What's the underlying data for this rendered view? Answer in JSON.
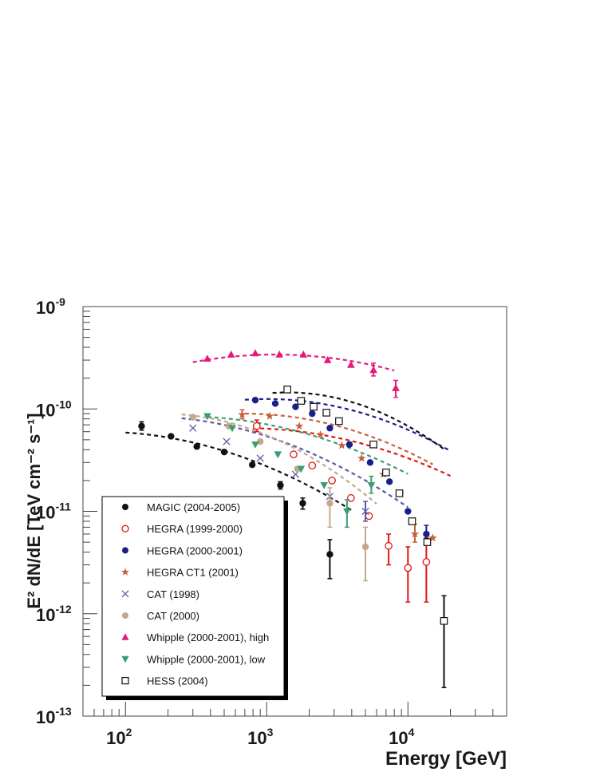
{
  "chart_data": {
    "type": "scatter",
    "x_scale": "log",
    "y_scale": "log",
    "xlim": [
      50,
      50000
    ],
    "ylim": [
      1e-13,
      1e-09
    ],
    "grid": false,
    "legend_position": "bottom-left",
    "xlabel": "Energy [GeV]",
    "ylabel": "E² dN/dE [TeV cm⁻² s⁻¹]",
    "x_ticks": [
      {
        "value": 100,
        "base": "10",
        "exp": "2"
      },
      {
        "value": 1000,
        "base": "10",
        "exp": "3"
      },
      {
        "value": 10000,
        "base": "10",
        "exp": "4"
      }
    ],
    "y_ticks": [
      {
        "value": 1e-09,
        "base": "10",
        "exp": "-9"
      },
      {
        "value": 1e-10,
        "base": "10",
        "exp": "-10"
      },
      {
        "value": 1e-11,
        "base": "10",
        "exp": "-11"
      },
      {
        "value": 1e-12,
        "base": "10",
        "exp": "-12"
      },
      {
        "value": 1e-13,
        "base": "10",
        "exp": "-13"
      }
    ],
    "series": [
      {
        "name": "MAGIC (2004-2005)",
        "color": "#111111",
        "marker": "filled-circle",
        "fit": {
          "x_range": [
            100,
            4000
          ],
          "peak_energy": 65,
          "norm": 6e-11,
          "curvature": 0.24
        },
        "points": [
          {
            "x": 130,
            "y": 6.8e-11,
            "lo": 6.2e-11,
            "hi": 7.5e-11
          },
          {
            "x": 210,
            "y": 5.4e-11
          },
          {
            "x": 320,
            "y": 4.3e-11
          },
          {
            "x": 500,
            "y": 3.8e-11
          },
          {
            "x": 790,
            "y": 2.85e-11
          },
          {
            "x": 1250,
            "y": 1.8e-11,
            "lo": 1.65e-11,
            "hi": 1.95e-11
          },
          {
            "x": 1800,
            "y": 1.2e-11,
            "lo": 1.05e-11,
            "hi": 1.35e-11
          },
          {
            "x": 2800,
            "y": 3.8e-12,
            "lo": 2.2e-12,
            "hi": 5.3e-12
          }
        ]
      },
      {
        "name": "HEGRA (1999-2000)",
        "color": "#e01818",
        "marker": "open-circle",
        "fit": {
          "x_range": [
            800,
            20000
          ],
          "peak_energy": 700,
          "norm": 6.5e-11,
          "curvature": 0.22
        },
        "points": [
          {
            "x": 850,
            "y": 6.8e-11,
            "lo": 6e-11,
            "hi": 7.8e-11
          },
          {
            "x": 1550,
            "y": 3.6e-11
          },
          {
            "x": 2100,
            "y": 2.8e-11
          },
          {
            "x": 2900,
            "y": 2e-11
          },
          {
            "x": 3950,
            "y": 1.35e-11
          },
          {
            "x": 5300,
            "y": 9e-12
          },
          {
            "x": 7300,
            "y": 4.6e-12,
            "lo": 3e-12,
            "hi": 6e-12
          },
          {
            "x": 10000,
            "y": 2.8e-12,
            "lo": 1.3e-12,
            "hi": 4.5e-12
          },
          {
            "x": 13500,
            "y": 3.2e-12,
            "lo": 1.3e-12,
            "hi": 5.5e-12
          }
        ]
      },
      {
        "name": "HEGRA (2000-2001)",
        "color": "#1a1f8c",
        "marker": "filled-circle",
        "fit": {
          "x_range": [
            700,
            20000
          ],
          "peak_energy": 1000,
          "norm": 1.25e-10,
          "curvature": 0.3
        },
        "points": [
          {
            "x": 830,
            "y": 1.22e-10
          },
          {
            "x": 1150,
            "y": 1.13e-10
          },
          {
            "x": 1600,
            "y": 1.05e-10
          },
          {
            "x": 2100,
            "y": 9e-11
          },
          {
            "x": 2800,
            "y": 6.5e-11
          },
          {
            "x": 3850,
            "y": 4.5e-11
          },
          {
            "x": 5400,
            "y": 3e-11
          },
          {
            "x": 7400,
            "y": 1.95e-11
          },
          {
            "x": 10000,
            "y": 1e-11
          },
          {
            "x": 13500,
            "y": 6e-12,
            "lo": 4.8e-12,
            "hi": 7.3e-12
          }
        ]
      },
      {
        "name": "HEGRA CT1 (2001)",
        "color": "#c8623e",
        "marker": "star",
        "fit": {
          "x_range": [
            700,
            15000
          ],
          "peak_energy": 700,
          "norm": 9e-11,
          "curvature": 0.28
        },
        "points": [
          {
            "x": 670,
            "y": 8.8e-11,
            "lo": 8e-11,
            "hi": 9.8e-11
          },
          {
            "x": 1050,
            "y": 8.5e-11
          },
          {
            "x": 1700,
            "y": 6.8e-11
          },
          {
            "x": 2400,
            "y": 5.6e-11
          },
          {
            "x": 3400,
            "y": 4.4e-11
          },
          {
            "x": 4700,
            "y": 3.3e-11
          },
          {
            "x": 6700,
            "y": 2.3e-11
          },
          {
            "x": 8800,
            "y": 1.5e-11
          },
          {
            "x": 11200,
            "y": 6e-12,
            "lo": 5e-12,
            "hi": 7.5e-12
          },
          {
            "x": 15000,
            "y": 5.5e-12
          }
        ]
      },
      {
        "name": "CAT (1998)",
        "color": "#5a5aa8",
        "marker": "cross",
        "fit": {
          "x_range": [
            250,
            10000
          ],
          "peak_energy": 130,
          "norm": 8.5e-11,
          "curvature": 0.25
        },
        "points": [
          {
            "x": 300,
            "y": 6.5e-11
          },
          {
            "x": 520,
            "y": 4.8e-11
          },
          {
            "x": 900,
            "y": 3.3e-11
          },
          {
            "x": 1600,
            "y": 2.3e-11
          },
          {
            "x": 2800,
            "y": 1.4e-11
          },
          {
            "x": 5000,
            "y": 1e-11,
            "lo": 8e-12,
            "hi": 1.25e-11
          }
        ]
      },
      {
        "name": "CAT (2000)",
        "color": "#c4a88a",
        "marker": "filled-circle",
        "fit": {
          "x_range": [
            250,
            6000
          ],
          "peak_energy": 180,
          "norm": 9e-11,
          "curvature": 0.38
        },
        "points": [
          {
            "x": 300,
            "y": 8.3e-11
          },
          {
            "x": 540,
            "y": 6.8e-11
          },
          {
            "x": 900,
            "y": 4.8e-11
          },
          {
            "x": 1650,
            "y": 2.6e-11
          },
          {
            "x": 2800,
            "y": 1.2e-11,
            "lo": 7e-12,
            "hi": 1.7e-11
          },
          {
            "x": 5000,
            "y": 4.5e-12,
            "lo": 2.1e-12,
            "hi": 7e-12
          }
        ]
      },
      {
        "name": "Whipple (2000-2001), high",
        "color": "#e8177e",
        "marker": "filled-triangle-up",
        "fit": {
          "x_range": [
            300,
            8000
          ],
          "peak_energy": 1150,
          "norm": 3.4e-10,
          "curvature": 0.22
        },
        "points": [
          {
            "x": 380,
            "y": 3.1e-10
          },
          {
            "x": 560,
            "y": 3.4e-10
          },
          {
            "x": 830,
            "y": 3.5e-10
          },
          {
            "x": 1230,
            "y": 3.4e-10
          },
          {
            "x": 1820,
            "y": 3.4e-10
          },
          {
            "x": 2700,
            "y": 3e-10
          },
          {
            "x": 3950,
            "y": 2.7e-10
          },
          {
            "x": 5700,
            "y": 2.4e-10,
            "lo": 2.1e-10,
            "hi": 2.8e-10
          },
          {
            "x": 8200,
            "y": 1.6e-10,
            "lo": 1.3e-10,
            "hi": 1.9e-10
          }
        ]
      },
      {
        "name": "Whipple (2000-2001), low",
        "color": "#3a9e72",
        "marker": "filled-triangle-down",
        "fit": {
          "x_range": [
            380,
            10000
          ],
          "peak_energy": 250,
          "norm": 8.5e-11,
          "curvature": 0.22
        },
        "points": [
          {
            "x": 380,
            "y": 8.5e-11
          },
          {
            "x": 570,
            "y": 6.5e-11
          },
          {
            "x": 830,
            "y": 4.5e-11
          },
          {
            "x": 1200,
            "y": 3.6e-11
          },
          {
            "x": 1750,
            "y": 2.6e-11
          },
          {
            "x": 2550,
            "y": 1.8e-11
          },
          {
            "x": 3700,
            "y": 1e-11,
            "lo": 7e-12,
            "hi": 1.3e-11
          },
          {
            "x": 5500,
            "y": 1.8e-11,
            "lo": 1.5e-11,
            "hi": 2.2e-11
          }
        ]
      },
      {
        "name": "HESS (2004)",
        "color": "#111111",
        "marker": "open-square",
        "fit": {
          "x_range": [
            1100,
            18000
          ],
          "peak_energy": 1400,
          "norm": 1.45e-10,
          "curvature": 0.45
        },
        "points": [
          {
            "x": 1400,
            "y": 1.55e-10
          },
          {
            "x": 1750,
            "y": 1.2e-10
          },
          {
            "x": 2150,
            "y": 1.05e-10
          },
          {
            "x": 2650,
            "y": 9.2e-11
          },
          {
            "x": 3250,
            "y": 7.6e-11
          },
          {
            "x": 5700,
            "y": 4.5e-11
          },
          {
            "x": 7000,
            "y": 2.4e-11
          },
          {
            "x": 8700,
            "y": 1.5e-11
          },
          {
            "x": 10700,
            "y": 8e-12
          },
          {
            "x": 13700,
            "y": 5e-12
          },
          {
            "x": 18000,
            "y": 8.5e-13,
            "lo": 1.9e-13,
            "hi": 1.5e-12
          }
        ]
      }
    ]
  }
}
